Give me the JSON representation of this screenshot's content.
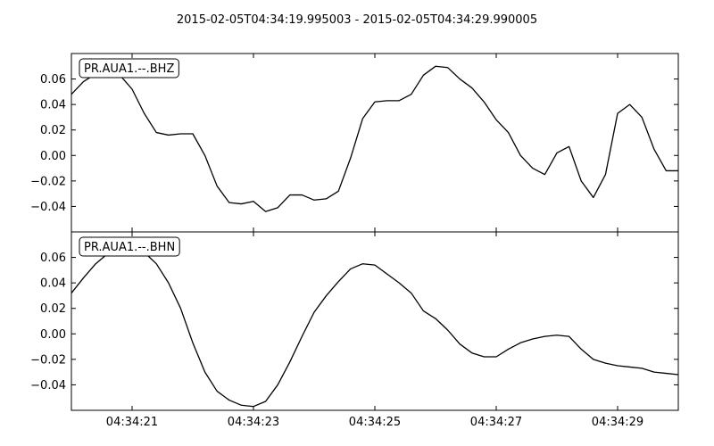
{
  "chart_data": [
    {
      "type": "line",
      "title": "2015-02-05T04:34:19.995003  -  2015-02-05T04:34:29.990005",
      "trace_label": "PR.AUA1.--.BHZ",
      "xlabel": "",
      "ylabel": "",
      "x_range": [
        "04:34:20.00",
        "04:34:30.00"
      ],
      "xlim_seconds": [
        20.0,
        30.0
      ],
      "ylim": [
        -0.06,
        0.08
      ],
      "yticks": [
        0.06,
        0.04,
        0.02,
        0.0,
        -0.02,
        -0.04
      ],
      "ytick_labels": [
        "0.06",
        "0.04",
        "0.02",
        "0.00",
        "−0.02",
        "−0.04"
      ],
      "grid": false,
      "legend_position": "top-left",
      "line_color": "#000000",
      "series": [
        {
          "x": [
            20.0,
            20.2,
            20.4,
            20.6,
            20.8,
            21.0,
            21.2,
            21.4,
            21.6,
            21.8,
            22.0,
            22.2,
            22.4,
            22.6,
            22.8,
            23.0,
            23.2,
            23.4,
            23.6,
            23.8,
            24.0,
            24.2,
            24.4,
            24.6,
            24.8,
            25.0,
            25.2,
            25.4,
            25.6,
            25.8,
            26.0,
            26.2,
            26.4,
            26.6,
            26.8,
            27.0,
            27.2,
            27.4,
            27.6,
            27.8,
            28.0,
            28.2,
            28.4,
            28.6,
            28.8,
            29.0,
            29.2,
            29.4,
            29.6,
            29.8,
            30.0
          ],
          "y": [
            0.048,
            0.058,
            0.064,
            0.066,
            0.063,
            0.052,
            0.033,
            0.018,
            0.016,
            0.017,
            0.017,
            0.0,
            -0.024,
            -0.037,
            -0.038,
            -0.036,
            -0.044,
            -0.041,
            -0.031,
            -0.031,
            -0.035,
            -0.034,
            -0.028,
            -0.002,
            0.029,
            0.042,
            0.043,
            0.043,
            0.048,
            0.063,
            0.07,
            0.069,
            0.06,
            0.053,
            0.042,
            0.028,
            0.018,
            0.0,
            -0.01,
            -0.015,
            0.002,
            0.007,
            -0.02,
            -0.033,
            -0.015,
            0.033,
            0.04,
            0.03,
            0.005,
            -0.012,
            -0.012
          ]
        }
      ]
    },
    {
      "type": "line",
      "title": "",
      "trace_label": "PR.AUA1.--.BHN",
      "xlabel": "",
      "ylabel": "",
      "x_range": [
        "04:34:20.00",
        "04:34:30.00"
      ],
      "xlim_seconds": [
        20.0,
        30.0
      ],
      "ylim": [
        -0.06,
        0.08
      ],
      "yticks": [
        0.06,
        0.04,
        0.02,
        0.0,
        -0.02,
        -0.04
      ],
      "ytick_labels": [
        "0.06",
        "0.04",
        "0.02",
        "0.00",
        "−0.02",
        "−0.04"
      ],
      "xticks_seconds": [
        21,
        23,
        25,
        27,
        29
      ],
      "xtick_labels": [
        "04:34:21",
        "04:34:23",
        "04:34:25",
        "04:34:27",
        "04:34:29"
      ],
      "grid": false,
      "legend_position": "top-left",
      "line_color": "#000000",
      "series": [
        {
          "x": [
            20.0,
            20.2,
            20.4,
            20.6,
            20.8,
            21.0,
            21.2,
            21.4,
            21.6,
            21.8,
            22.0,
            22.2,
            22.4,
            22.6,
            22.8,
            23.0,
            23.2,
            23.4,
            23.6,
            23.8,
            24.0,
            24.2,
            24.4,
            24.6,
            24.8,
            25.0,
            25.2,
            25.4,
            25.6,
            25.8,
            26.0,
            26.2,
            26.4,
            26.6,
            26.8,
            27.0,
            27.2,
            27.4,
            27.6,
            27.8,
            28.0,
            28.2,
            28.4,
            28.6,
            28.8,
            29.0,
            29.2,
            29.4,
            29.6,
            29.8,
            30.0
          ],
          "y": [
            0.032,
            0.044,
            0.055,
            0.063,
            0.067,
            0.067,
            0.064,
            0.055,
            0.04,
            0.02,
            -0.007,
            -0.03,
            -0.045,
            -0.052,
            -0.056,
            -0.057,
            -0.053,
            -0.04,
            -0.022,
            -0.002,
            0.017,
            0.03,
            0.041,
            0.051,
            0.055,
            0.054,
            0.047,
            0.04,
            0.032,
            0.018,
            0.012,
            0.003,
            -0.008,
            -0.015,
            -0.018,
            -0.018,
            -0.012,
            -0.007,
            -0.004,
            -0.002,
            -0.001,
            -0.002,
            -0.012,
            -0.02,
            -0.023,
            -0.025,
            -0.026,
            -0.027,
            -0.03,
            -0.031,
            -0.032
          ]
        }
      ]
    }
  ]
}
